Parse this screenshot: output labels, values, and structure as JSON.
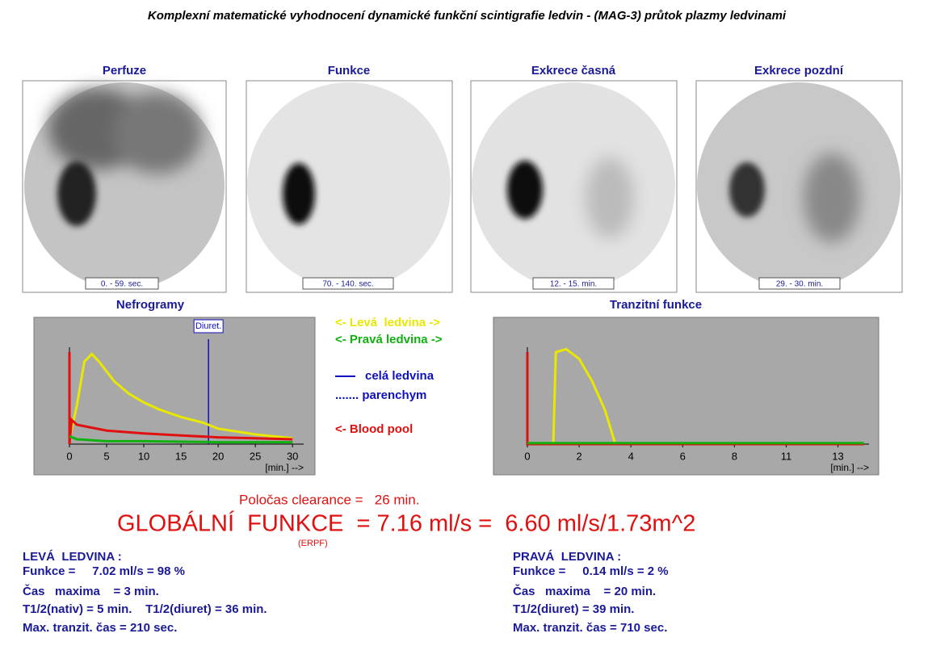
{
  "title": "Komplexní matematické vyhodnocení dynamické funkční scintigrafie ledvin - (MAG-3) průtok plazmy ledvinami",
  "images": [
    {
      "label": "Perfuze",
      "caption": "0. - 59. sec."
    },
    {
      "label": "Funkce",
      "caption": "70. - 140. sec."
    },
    {
      "label": "Exkrece časná",
      "caption": "12. - 15. min."
    },
    {
      "label": "Exkrece pozdní",
      "caption": "29. - 30. min."
    }
  ],
  "nefrogramy": {
    "type": "line",
    "title": "Nefrogramy",
    "x_label": "[min.] -->",
    "xlim": [
      0,
      31.5
    ],
    "xticks": [
      0,
      5,
      10,
      15,
      20,
      25,
      30
    ],
    "ylim": [
      0,
      100
    ],
    "marker": {
      "label": "Diuret.",
      "x": 18.7,
      "color": "#1010c0"
    },
    "series": [
      {
        "color": "#e8e800",
        "x": [
          0,
          1,
          2,
          3,
          4,
          6,
          8,
          10,
          12,
          15,
          18,
          20,
          25,
          30
        ],
        "values": [
          5,
          40,
          85,
          93,
          85,
          65,
          52,
          43,
          36,
          28,
          22,
          16,
          10,
          6
        ]
      },
      {
        "color": "#e01010",
        "x": [
          0,
          0,
          0.3,
          1,
          3,
          5,
          10,
          15,
          20,
          25,
          30
        ],
        "values": [
          95,
          0,
          25,
          20,
          17,
          14,
          11,
          9,
          7,
          6,
          5
        ]
      },
      {
        "color": "#10b010",
        "x": [
          0,
          1,
          5,
          10,
          20,
          30
        ],
        "values": [
          8,
          5,
          3,
          3,
          2,
          2
        ]
      }
    ]
  },
  "tranzit": {
    "type": "line",
    "title": "Tranzitní funkce",
    "x_label": "[min.] -->",
    "xlim": [
      0,
      13.2
    ],
    "xticks": [
      0,
      2,
      4,
      6,
      8,
      {
        "value": 10,
        "label": "11"
      },
      {
        "value": 12,
        "label": "13"
      }
    ],
    "ylim": [
      0,
      100
    ],
    "series": [
      {
        "color": "#e8e800",
        "x": [
          1,
          1.1,
          1.5,
          2,
          2.5,
          3,
          3.4
        ],
        "values": [
          0,
          95,
          98,
          88,
          65,
          35,
          0
        ]
      },
      {
        "color": "#e01010",
        "x": [
          0,
          0,
          13
        ],
        "values": [
          95,
          0,
          0
        ]
      },
      {
        "color": "#10b010",
        "x": [
          0,
          13
        ],
        "values": [
          1,
          1
        ]
      }
    ]
  },
  "legend": [
    {
      "text": "<- Levá  ledvina ->",
      "color": "#e8e800"
    },
    {
      "text": "<- Pravá ledvina ->",
      "color": "#10b010"
    },
    {
      "text": "celá ledvina",
      "color": "#1010c0",
      "symbol": "line"
    },
    {
      "text": "....... parenchym",
      "color": "#1010c0"
    },
    {
      "text": "<- Blood pool",
      "color": "#e01010"
    }
  ],
  "clearance": "Poločas clearance =   26 min.",
  "global": "GLOBÁLNÍ  FUNKCE  = 7.16 ml/s =  6.60 ml/s/1.73m^2",
  "erpf": "(ERPF)",
  "left": {
    "heading": "LEVÁ  LEDVINA :",
    "lines": [
      "Funkce =     7.02 ml/s = 98 %",
      "Čas   maxima    = 3 min.",
      "T1/2(nativ) = 5 min.    T1/2(diuret) = 36 min.",
      "Max. tranzit. čas = 210 sec."
    ]
  },
  "right": {
    "heading": "PRAVÁ  LEDVINA :",
    "lines": [
      "Funkce =     0.14 ml/s = 2 %",
      "Čas   maxima    = 20 min.",
      "T1/2(diuret) = 39 min.",
      "Max. tranzit. čas = 710 sec."
    ]
  }
}
